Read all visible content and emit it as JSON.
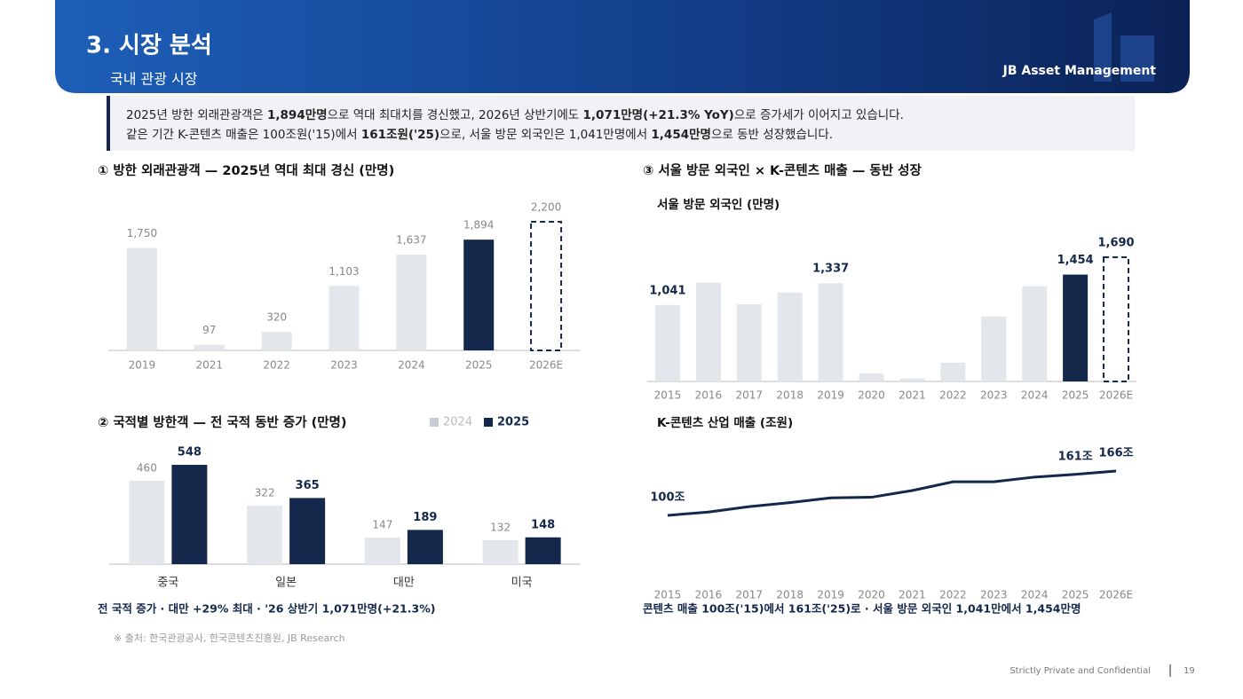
{
  "header": {
    "title": "3. 시장 분석",
    "subtitle": "국내 관광 시장",
    "brand": "JB Asset Management"
  },
  "summary": [
    [
      {
        "text": "2025년 방한 외래관광객은 ",
        "bold": false
      },
      {
        "text": "1,894만명",
        "bold": true
      },
      {
        "text": "으로 역대 최대치를 경신했고, 2026년 상반기에도 ",
        "bold": false
      },
      {
        "text": "1,071만명(+21.3% YoY)",
        "bold": true
      },
      {
        "text": "으로 증가세가 이어지고 있습니다.",
        "bold": false
      }
    ],
    [
      {
        "text": "같은 기간 K-콘텐츠 매출은 100조원('15)에서 ",
        "bold": false
      },
      {
        "text": "161조원('25)",
        "bold": true
      },
      {
        "text": "으로, 서울 방문 외국인은 1,041만명에서 ",
        "bold": false
      },
      {
        "text": "1,454만명",
        "bold": true
      },
      {
        "text": "으로 동반 성장했습니다.",
        "bold": false
      }
    ]
  ],
  "right_section_title": "③ 서울 방문 외국인 × K-콘텐츠 매출 — 동반 성장",
  "chart_data": [
    {
      "type": "bar",
      "title": "① 방한 외래관광객 — 2025년 역대 최대 경신 (만명)",
      "categories": [
        "2019",
        "2021",
        "2022",
        "2023",
        "2024",
        "2025",
        "2026E"
      ],
      "values": [
        1750,
        97,
        320,
        1103,
        1637,
        1894,
        2200
      ],
      "value_labels": [
        "1,750",
        "97",
        "320",
        "1,103",
        "1,637",
        "1,894",
        "2,200"
      ],
      "colors": [
        "#e3e6eb",
        "#e3e6eb",
        "#e3e6eb",
        "#e3e6eb",
        "#e3e6eb",
        "#14284b",
        "#ffffff"
      ],
      "dashed": [
        false,
        false,
        false,
        false,
        false,
        false,
        true
      ]
    },
    {
      "type": "bar",
      "title": "② 국적별 방한객 — 전 국적 동반 증가 (만명)",
      "categories": [
        "중국",
        "일본",
        "대만",
        "미국"
      ],
      "series": [
        {
          "name": "2024",
          "color": "#e3e6eb",
          "values": [
            460,
            322,
            147,
            132
          ]
        },
        {
          "name": "2025",
          "color": "#14284b",
          "values": [
            548,
            365,
            189,
            148
          ]
        }
      ],
      "legend": "top-right",
      "note": "전 국적 증가 · 대만 +29% 최대 · '26 상반기 1,071만명(+21.3%)"
    },
    {
      "type": "bar",
      "title": "서울 방문 외국인 (만명)",
      "categories": [
        "2015",
        "2016",
        "2017",
        "2018",
        "2019",
        "2020",
        "2021",
        "2022",
        "2023",
        "2024",
        "2025",
        "2026E"
      ],
      "values": [
        1041,
        1345,
        1050,
        1210,
        1337,
        110,
        40,
        255,
        885,
        1295,
        1454,
        1690
      ],
      "value_labels": [
        "1,041",
        null,
        null,
        null,
        "1,337",
        null,
        null,
        null,
        null,
        null,
        "1,454",
        "1,690"
      ],
      "colors": [
        "#e3e6eb",
        "#e3e6eb",
        "#e3e6eb",
        "#e3e6eb",
        "#e3e6eb",
        "#e3e6eb",
        "#e3e6eb",
        "#e3e6eb",
        "#e3e6eb",
        "#e3e6eb",
        "#14284b",
        "#ffffff"
      ],
      "dashed": [
        false,
        false,
        false,
        false,
        false,
        false,
        false,
        false,
        false,
        false,
        false,
        true
      ]
    },
    {
      "type": "line",
      "title": "K-콘텐츠 산업 매출 (조원)",
      "categories": [
        "2015",
        "2016",
        "2017",
        "2018",
        "2019",
        "2020",
        "2021",
        "2022",
        "2023",
        "2024",
        "2025",
        "2026E"
      ],
      "values": [
        100,
        105,
        113,
        119,
        126,
        127,
        137,
        150,
        150,
        157,
        161,
        166
      ],
      "value_labels": [
        "100조",
        null,
        null,
        null,
        null,
        null,
        null,
        null,
        null,
        null,
        "161조",
        "166조"
      ],
      "color": "#14284b",
      "note": "콘텐츠 매출 100조('15)에서 161조('25)로 · 서울 방문 외국인 1,041만에서 1,454만명"
    }
  ],
  "source": "※ 출처: 한국관광공사, 한국콘텐츠진흥원, JB Research",
  "footer": {
    "confidential": "Strictly Private and Confidential",
    "page": "19"
  }
}
